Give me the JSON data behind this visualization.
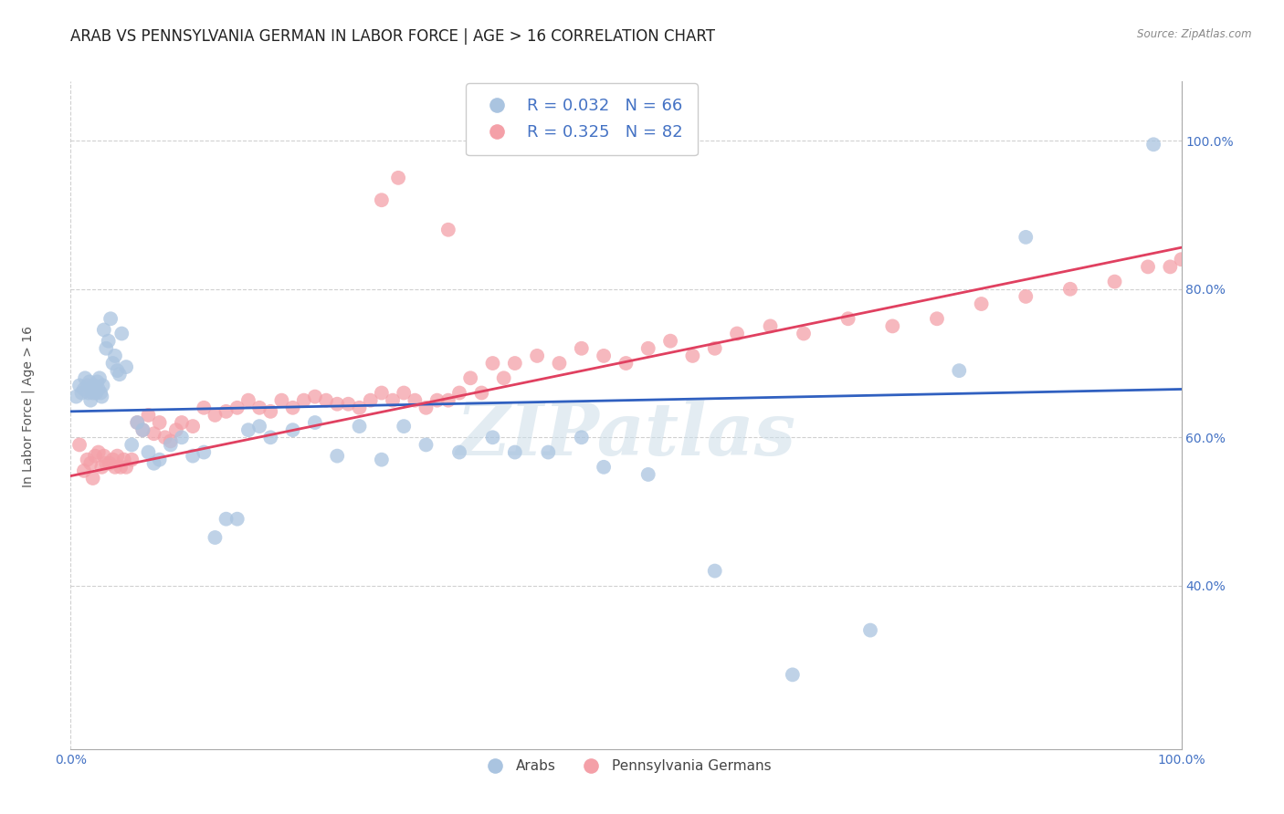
{
  "title": "ARAB VS PENNSYLVANIA GERMAN IN LABOR FORCE | AGE > 16 CORRELATION CHART",
  "source": "Source: ZipAtlas.com",
  "ylabel": "In Labor Force | Age > 16",
  "xmin": 0.0,
  "xmax": 1.0,
  "ymin": 0.18,
  "ymax": 1.08,
  "xtick_positions": [
    0.0,
    1.0
  ],
  "xtick_labels": [
    "0.0%",
    "100.0%"
  ],
  "ytick_positions": [
    0.4,
    0.6,
    0.8,
    1.0
  ],
  "ytick_labels": [
    "40.0%",
    "60.0%",
    "80.0%",
    "100.0%"
  ],
  "arab_color": "#aac4e0",
  "penn_color": "#f4a0a8",
  "arab_line_color": "#3060c0",
  "penn_line_color": "#e04060",
  "watermark": "ZIPatlas",
  "arab_R": 0.032,
  "arab_N": 66,
  "penn_R": 0.325,
  "penn_N": 82,
  "arab_line_x": [
    0.0,
    1.0
  ],
  "arab_line_y": [
    0.635,
    0.665
  ],
  "penn_line_x": [
    0.0,
    1.0
  ],
  "penn_line_y": [
    0.548,
    0.856
  ],
  "arab_scatter_x": [
    0.005,
    0.008,
    0.01,
    0.012,
    0.013,
    0.015,
    0.016,
    0.017,
    0.018,
    0.019,
    0.02,
    0.021,
    0.022,
    0.023,
    0.024,
    0.025,
    0.026,
    0.027,
    0.028,
    0.029,
    0.03,
    0.032,
    0.034,
    0.036,
    0.038,
    0.04,
    0.042,
    0.044,
    0.046,
    0.05,
    0.055,
    0.06,
    0.065,
    0.07,
    0.075,
    0.08,
    0.09,
    0.1,
    0.11,
    0.12,
    0.13,
    0.14,
    0.15,
    0.16,
    0.17,
    0.18,
    0.2,
    0.22,
    0.24,
    0.26,
    0.28,
    0.3,
    0.32,
    0.35,
    0.38,
    0.4,
    0.43,
    0.46,
    0.48,
    0.52,
    0.58,
    0.65,
    0.72,
    0.8,
    0.86,
    0.975
  ],
  "arab_scatter_y": [
    0.655,
    0.67,
    0.66,
    0.665,
    0.68,
    0.67,
    0.66,
    0.675,
    0.65,
    0.665,
    0.66,
    0.67,
    0.665,
    0.66,
    0.675,
    0.665,
    0.68,
    0.66,
    0.655,
    0.67,
    0.745,
    0.72,
    0.73,
    0.76,
    0.7,
    0.71,
    0.69,
    0.685,
    0.74,
    0.695,
    0.59,
    0.62,
    0.61,
    0.58,
    0.565,
    0.57,
    0.59,
    0.6,
    0.575,
    0.58,
    0.465,
    0.49,
    0.49,
    0.61,
    0.615,
    0.6,
    0.61,
    0.62,
    0.575,
    0.615,
    0.57,
    0.615,
    0.59,
    0.58,
    0.6,
    0.58,
    0.58,
    0.6,
    0.56,
    0.55,
    0.42,
    0.28,
    0.34,
    0.69,
    0.87,
    0.995
  ],
  "penn_scatter_x": [
    0.008,
    0.012,
    0.015,
    0.018,
    0.02,
    0.022,
    0.025,
    0.028,
    0.03,
    0.032,
    0.035,
    0.038,
    0.04,
    0.042,
    0.045,
    0.048,
    0.05,
    0.055,
    0.06,
    0.065,
    0.07,
    0.075,
    0.08,
    0.085,
    0.09,
    0.095,
    0.1,
    0.11,
    0.12,
    0.13,
    0.14,
    0.15,
    0.16,
    0.17,
    0.18,
    0.19,
    0.2,
    0.21,
    0.22,
    0.23,
    0.24,
    0.25,
    0.26,
    0.27,
    0.28,
    0.29,
    0.3,
    0.31,
    0.32,
    0.33,
    0.34,
    0.35,
    0.36,
    0.37,
    0.38,
    0.39,
    0.4,
    0.42,
    0.44,
    0.46,
    0.48,
    0.5,
    0.52,
    0.54,
    0.56,
    0.58,
    0.6,
    0.63,
    0.66,
    0.7,
    0.74,
    0.78,
    0.82,
    0.86,
    0.9,
    0.94,
    0.97,
    0.99,
    1.0,
    0.28,
    0.295,
    0.34
  ],
  "penn_scatter_y": [
    0.59,
    0.555,
    0.57,
    0.565,
    0.545,
    0.575,
    0.58,
    0.56,
    0.575,
    0.565,
    0.565,
    0.57,
    0.56,
    0.575,
    0.56,
    0.57,
    0.56,
    0.57,
    0.62,
    0.61,
    0.63,
    0.605,
    0.62,
    0.6,
    0.595,
    0.61,
    0.62,
    0.615,
    0.64,
    0.63,
    0.635,
    0.64,
    0.65,
    0.64,
    0.635,
    0.65,
    0.64,
    0.65,
    0.655,
    0.65,
    0.645,
    0.645,
    0.64,
    0.65,
    0.66,
    0.65,
    0.66,
    0.65,
    0.64,
    0.65,
    0.65,
    0.66,
    0.68,
    0.66,
    0.7,
    0.68,
    0.7,
    0.71,
    0.7,
    0.72,
    0.71,
    0.7,
    0.72,
    0.73,
    0.71,
    0.72,
    0.74,
    0.75,
    0.74,
    0.76,
    0.75,
    0.76,
    0.78,
    0.79,
    0.8,
    0.81,
    0.83,
    0.83,
    0.84,
    0.92,
    0.95,
    0.88
  ],
  "background_color": "#ffffff",
  "grid_color": "#d0d0d0",
  "title_fontsize": 12,
  "axis_label_fontsize": 10,
  "tick_fontsize": 10,
  "legend_fontsize": 13
}
